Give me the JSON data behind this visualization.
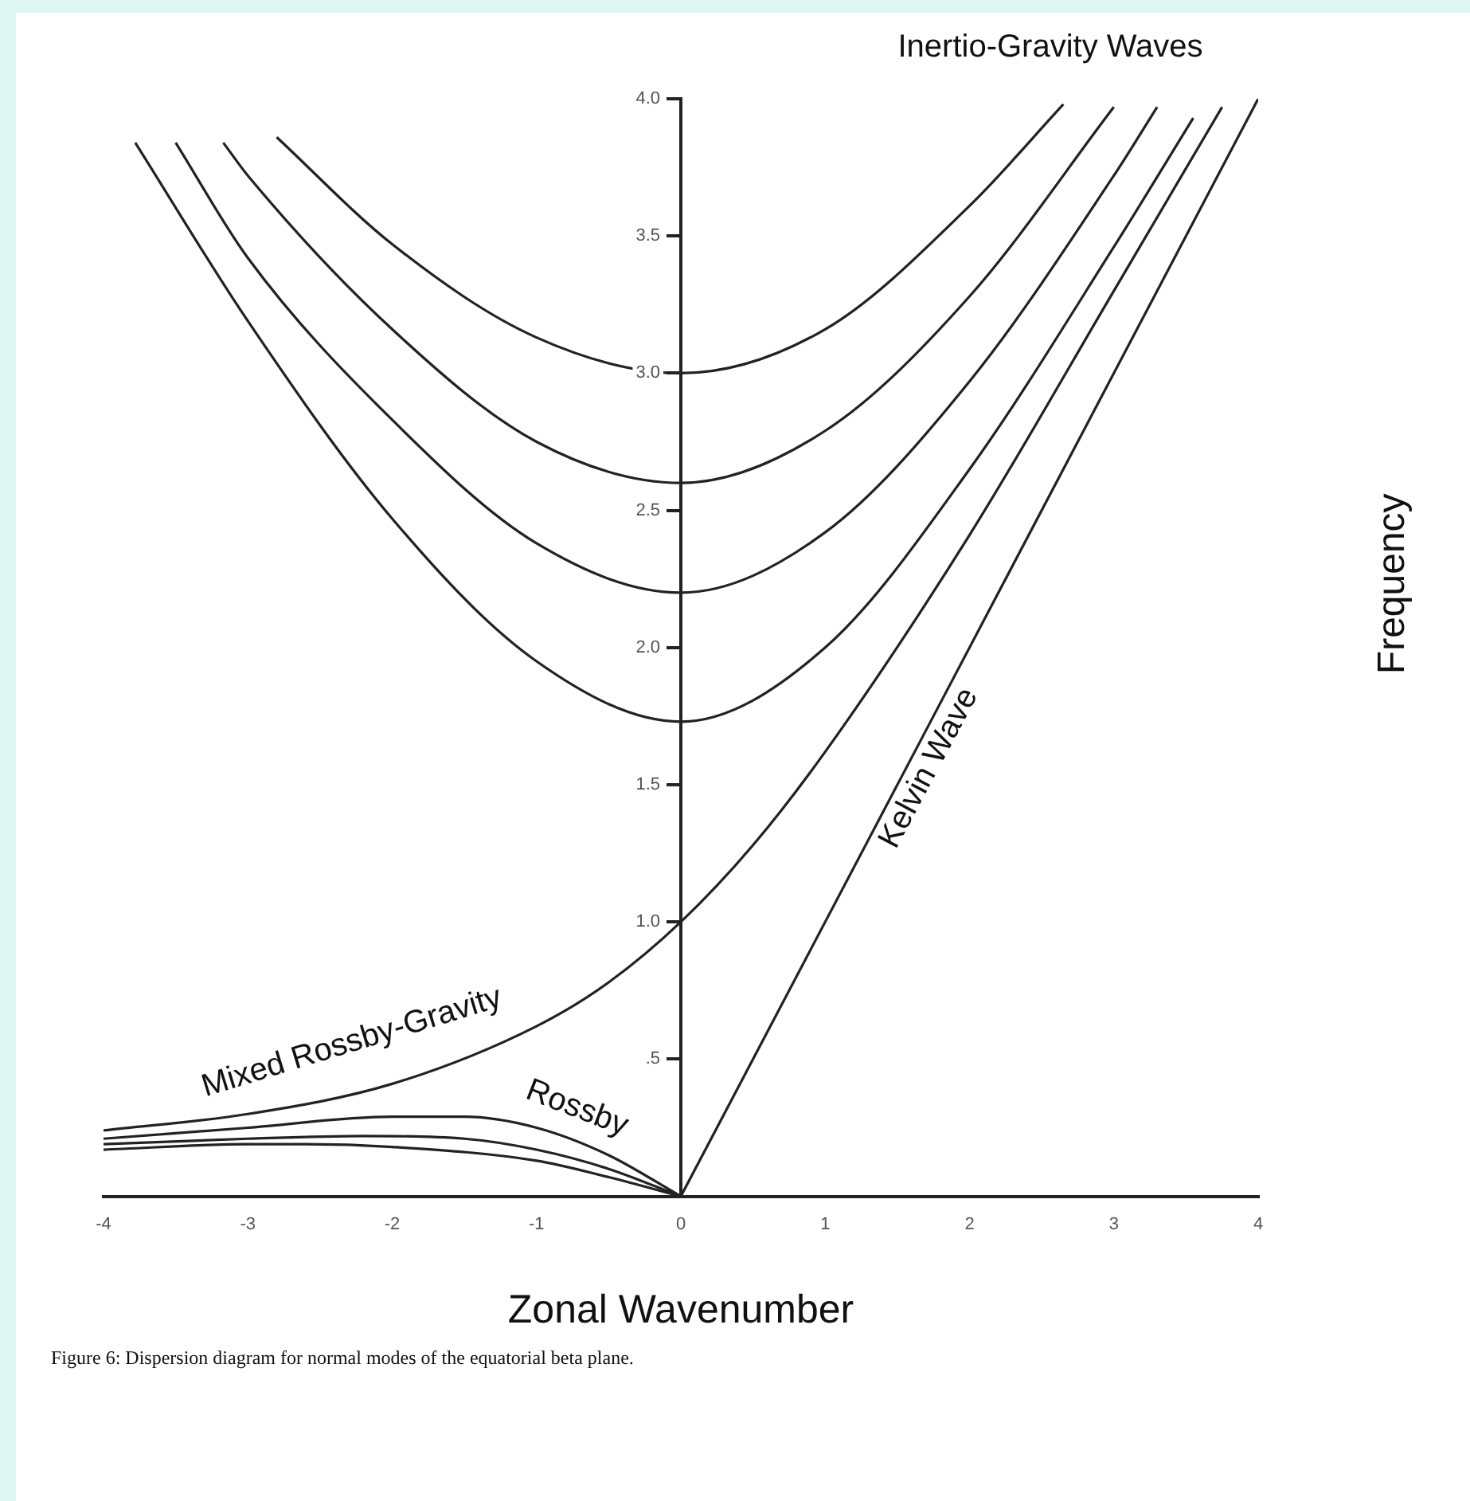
{
  "chart_data": {
    "type": "line",
    "xlabel": "Zonal Wavenumber",
    "ylabel": "Frequency",
    "xlim": [
      -4,
      4
    ],
    "ylim": [
      0,
      4
    ],
    "xticks": [
      -4,
      -3,
      -2,
      -1,
      0,
      1,
      2,
      3,
      4
    ],
    "yticks": [
      {
        "value": 0.5,
        "label": ".5"
      },
      {
        "value": 1,
        "label": "1.0"
      },
      {
        "value": 1.5,
        "label": "1.5"
      },
      {
        "value": 2,
        "label": "2.0"
      },
      {
        "value": 2.5,
        "label": "2.5"
      },
      {
        "value": 3,
        "label": "3.0"
      },
      {
        "value": 3.5,
        "label": "3.5"
      },
      {
        "value": 4,
        "label": "4.0"
      }
    ],
    "grid": false,
    "legend": false,
    "marker": "none",
    "line_style": "solid",
    "series": [
      {
        "color": "#222222",
        "x": [
          -3.78,
          -3,
          -2,
          -1,
          0,
          1,
          2,
          3,
          3.55
        ],
        "values": [
          3.84,
          3.19,
          2.47,
          1.95,
          1.73,
          2,
          2.65,
          3.46,
          3.93
        ]
      },
      {
        "color": "#222222",
        "x": [
          -3.5,
          -3,
          -2,
          -1,
          0,
          1,
          2,
          3,
          3.3
        ],
        "values": [
          3.84,
          3.42,
          2.83,
          2.38,
          2.2,
          2.42,
          2.97,
          3.72,
          3.97
        ]
      },
      {
        "color": "#222222",
        "x": [
          -3.17,
          -3,
          -2,
          -1,
          0,
          1,
          2,
          3
        ],
        "values": [
          3.84,
          3.72,
          3.16,
          2.75,
          2.6,
          2.79,
          3.28,
          3.97
        ]
      },
      {
        "color": "#222222",
        "x": [
          -2.8,
          -2,
          -1,
          0,
          1,
          2,
          2.65
        ],
        "values": [
          3.86,
          3.47,
          3.13,
          3,
          3.16,
          3.61,
          3.98
        ]
      },
      {
        "color": "#222222",
        "x": [
          -4,
          -3,
          -2,
          -1,
          -0.5,
          0,
          0.5,
          1,
          2,
          3,
          3.75
        ],
        "values": [
          0.24,
          0.3,
          0.41,
          0.62,
          0.78,
          1,
          1.28,
          1.62,
          2.41,
          3.3,
          3.97
        ]
      },
      {
        "color": "#222222",
        "x": [
          0,
          4
        ],
        "values": [
          0,
          4
        ]
      },
      {
        "color": "#222222",
        "x": [
          -4,
          -3,
          -2,
          -1.5,
          -1,
          -0.5,
          0
        ],
        "values": [
          0.21,
          0.25,
          0.29,
          0.29,
          0.25,
          0.15,
          0
        ]
      },
      {
        "color": "#222222",
        "x": [
          -4,
          -3,
          -2.2,
          -1.5,
          -1,
          -0.5,
          0
        ],
        "values": [
          0.19,
          0.21,
          0.22,
          0.21,
          0.17,
          0.1,
          0
        ]
      },
      {
        "color": "#222222",
        "x": [
          -4,
          -3,
          -2.6,
          -2,
          -1,
          -0.5,
          0
        ],
        "values": [
          0.17,
          0.19,
          0.19,
          0.18,
          0.13,
          0.07,
          0
        ]
      }
    ],
    "annotations": [
      "Inertio-Gravity Waves",
      "Kelvin Wave",
      "Mixed Rossby-Gravity",
      "Rossby",
      "Figure 6: Dispersion diagram for normal modes of the equatorial beta plane."
    ]
  }
}
